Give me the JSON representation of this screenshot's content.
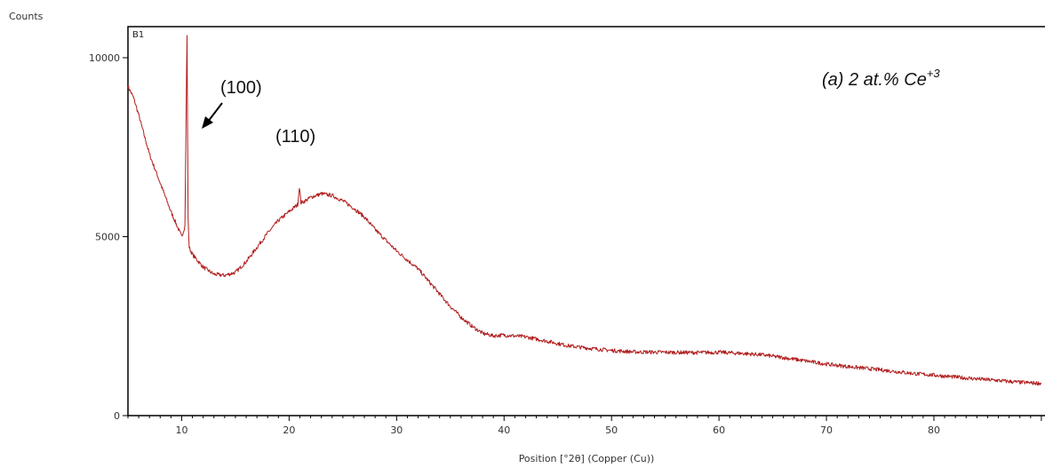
{
  "chart_data": {
    "type": "line",
    "panel_label": "B1",
    "ylabel": "Counts",
    "xlabel": "Position [°2θ] (Copper (Cu))",
    "xlim": [
      5,
      90
    ],
    "ylim": [
      0,
      10000
    ],
    "x_ticks": [
      10,
      20,
      30,
      40,
      50,
      60,
      70,
      80
    ],
    "y_ticks": [
      0,
      5000,
      10000
    ],
    "grid": false,
    "line_color": "#b01c1c",
    "annotations": [
      {
        "id": "peak-100",
        "text": "(100)",
        "x": 10.5,
        "y": 10600,
        "arrow": true
      },
      {
        "id": "peak-110",
        "text": "(110)",
        "x": 21.0,
        "y": 6400,
        "arrow": false
      }
    ],
    "sample_label": {
      "main": "(a) 2 at.% Ce",
      "sup": "+3"
    },
    "series": [
      {
        "color": "#b01c1c",
        "x": [
          5.0,
          5.5,
          6,
          7,
          8,
          9,
          10.0,
          10.3,
          10.4,
          10.45,
          10.5,
          10.55,
          10.6,
          10.7,
          11,
          12,
          13,
          14,
          15,
          16,
          17,
          18,
          19,
          20,
          20.8,
          20.95,
          21.1,
          21.5,
          22,
          23,
          24,
          25,
          26,
          27,
          28,
          29,
          30,
          31,
          32,
          33,
          34,
          35,
          36,
          37,
          38,
          39,
          40,
          42,
          44,
          46,
          48,
          50,
          52,
          55,
          58,
          60,
          62,
          64,
          66,
          68,
          70,
          72,
          75,
          78,
          80,
          83,
          86,
          88,
          90
        ],
        "y": [
          9200,
          8900,
          8400,
          7300,
          6500,
          5700,
          5000,
          5300,
          8000,
          9500,
          10600,
          8000,
          5500,
          4700,
          4500,
          4150,
          3950,
          3920,
          4000,
          4300,
          4700,
          5100,
          5450,
          5700,
          5900,
          6400,
          5950,
          6000,
          6100,
          6200,
          6150,
          6000,
          5800,
          5550,
          5200,
          4900,
          4600,
          4350,
          4100,
          3750,
          3400,
          3050,
          2750,
          2500,
          2300,
          2230,
          2250,
          2200,
          2080,
          1950,
          1880,
          1820,
          1780,
          1770,
          1760,
          1770,
          1740,
          1700,
          1620,
          1530,
          1440,
          1370,
          1280,
          1180,
          1130,
          1050,
          980,
          930,
          900
        ]
      }
    ]
  }
}
